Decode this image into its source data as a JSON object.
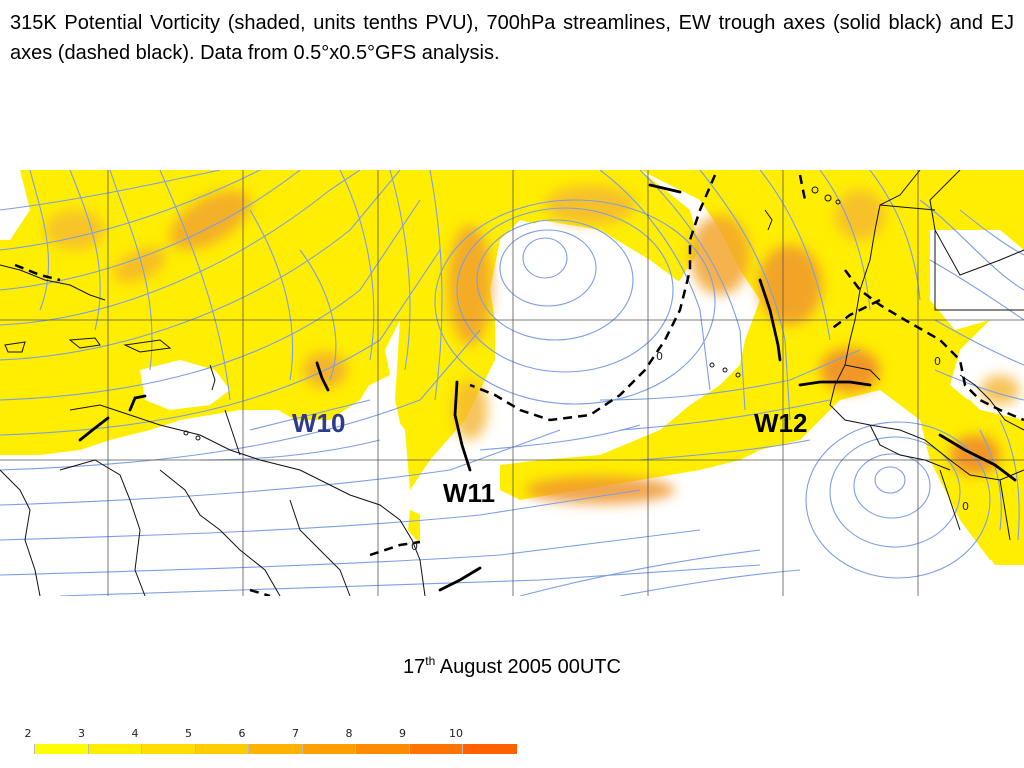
{
  "caption": "315K Potential Vorticity (shaded, units tenths PVU), 700hPa streamlines, EW trough axes (solid black) and EJ axes (dashed black). Data from 0.5°x0.5°GFS analysis.",
  "date": {
    "day": "17",
    "suffix": "th",
    "rest": " August 2005 00UTC"
  },
  "wave_labels": [
    {
      "text": "W10",
      "color": "#2e3a8c"
    },
    {
      "text": "W11",
      "color": "#000000"
    },
    {
      "text": "W12",
      "color": "#000000"
    }
  ],
  "contour_labels": [
    "0",
    "0",
    "0",
    "0"
  ],
  "legend": {
    "ticks": [
      "2",
      "3",
      "4",
      "5",
      "6",
      "7",
      "8",
      "9",
      "10"
    ],
    "colors": [
      "#ffffff",
      "#ffff00",
      "#ffee00",
      "#ffdd00",
      "#ffcc00",
      "#ffb300",
      "#ffa000",
      "#ff8c00",
      "#ff7400",
      "#ff6000"
    ]
  },
  "colors": {
    "streamline": "#7d9ee6",
    "pv_low": "#ffee00",
    "pv_mid": "#ffbb22",
    "pv_high": "#ee9030",
    "coast": "#111111",
    "grid": "#555555"
  }
}
